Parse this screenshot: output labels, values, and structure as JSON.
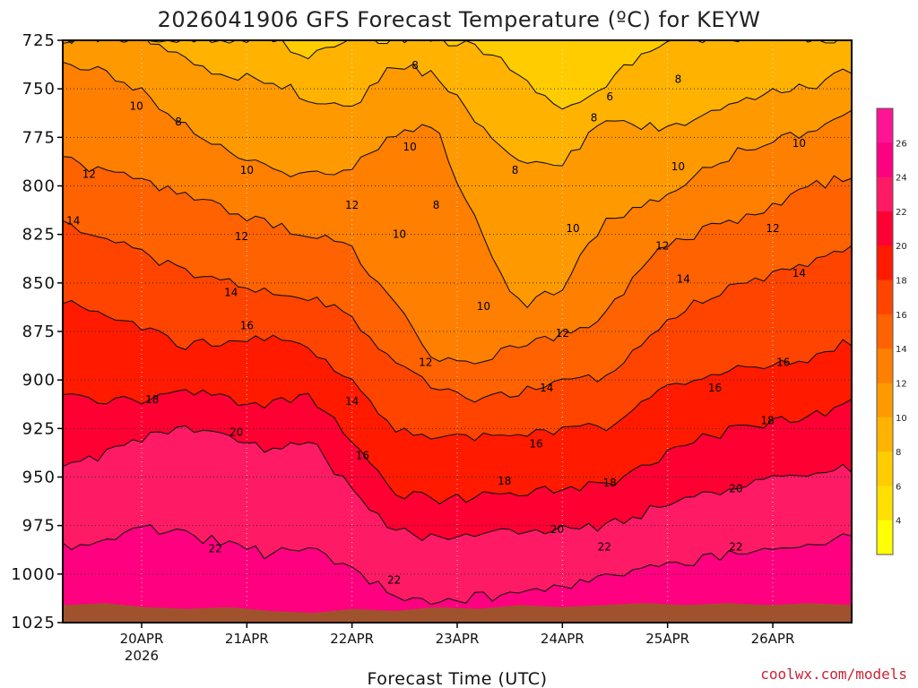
{
  "chart_data": {
    "type": "heatmap",
    "title": "2026041906 GFS Forecast Temperature (ºC) for KEYW",
    "xlabel": "Forecast Time (UTC)",
    "credit": "coolwx.com/models",
    "y_ticks": [
      "725",
      "750",
      "775",
      "800",
      "825",
      "850",
      "875",
      "900",
      "925",
      "950",
      "975",
      "1000",
      "1025"
    ],
    "ylim": [
      725,
      1025
    ],
    "x_ticks": [
      {
        "label": "20APR",
        "sub": "2026",
        "day": 1
      },
      {
        "label": "21APR",
        "sub": "",
        "day": 2
      },
      {
        "label": "22APR",
        "sub": "",
        "day": 3
      },
      {
        "label": "23APR",
        "sub": "",
        "day": 4
      },
      {
        "label": "24APR",
        "sub": "",
        "day": 5
      },
      {
        "label": "25APR",
        "sub": "",
        "day": 6
      },
      {
        "label": "26APR",
        "sub": "",
        "day": 7
      }
    ],
    "xlim": [
      0.25,
      7.75
    ],
    "colorbar_ticks": [
      4,
      6,
      8,
      10,
      12,
      14,
      16,
      18,
      20,
      22,
      24,
      26
    ],
    "colorbar_colors": [
      "#ffff00",
      "#ffe000",
      "#ffcc00",
      "#ffb300",
      "#ff9900",
      "#ff7f00",
      "#ff6200",
      "#ff4400",
      "#ff1a00",
      "#ff0033",
      "#ff1a66",
      "#ff0080",
      "#ff1493"
    ],
    "surface_color": "#a0522d",
    "contour_levels": [
      6,
      8,
      10,
      12,
      14,
      16,
      18,
      20,
      22
    ],
    "series": [
      {
        "level": 6,
        "x": [
          0.25,
          0.6,
          1.0,
          1.4,
          1.8,
          2.2,
          2.6,
          3.0,
          3.4,
          3.8,
          4.2,
          4.6,
          5.0,
          5.4,
          5.8,
          6.2,
          6.6,
          7.0,
          7.4,
          7.75
        ],
        "p": [
          724,
          724,
          724,
          724,
          724,
          724,
          733,
          724,
          724,
          724,
          728,
          742,
          762,
          748,
          730,
          724,
          724,
          724,
          724,
          724
        ]
      },
      {
        "level": 8,
        "x": [
          0.25,
          0.6,
          1.0,
          1.4,
          1.8,
          2.2,
          2.6,
          3.0,
          3.4,
          3.8,
          4.2,
          4.6,
          5.0,
          5.4,
          5.8,
          6.2,
          6.6,
          7.0,
          7.4,
          7.75
        ],
        "p": [
          724,
          724,
          724,
          735,
          742,
          745,
          755,
          760,
          738,
          742,
          768,
          786,
          790,
          764,
          770,
          768,
          760,
          752,
          748,
          740
        ]
      },
      {
        "level": 10,
        "x": [
          0.25,
          0.6,
          1.0,
          1.4,
          1.8,
          2.2,
          2.6,
          3.0,
          3.4,
          3.8,
          4.2,
          4.6,
          5.0,
          5.4,
          5.8,
          6.2,
          6.6,
          7.0,
          7.4,
          7.75
        ],
        "p": [
          735,
          740,
          752,
          768,
          782,
          790,
          795,
          790,
          772,
          770,
          822,
          862,
          852,
          818,
          810,
          796,
          784,
          778,
          770,
          762
        ]
      },
      {
        "level": 12,
        "x": [
          0.25,
          0.6,
          1.0,
          1.4,
          1.8,
          2.2,
          2.6,
          3.0,
          3.4,
          3.8,
          4.2,
          4.6,
          5.0,
          5.4,
          5.8,
          6.2,
          6.6,
          7.0,
          7.4,
          7.75
        ],
        "p": [
          785,
          792,
          798,
          805,
          812,
          820,
          825,
          832,
          860,
          890,
          890,
          882,
          876,
          868,
          836,
          826,
          818,
          810,
          800,
          795
        ]
      },
      {
        "level": 14,
        "x": [
          0.25,
          0.6,
          1.0,
          1.4,
          1.8,
          2.2,
          2.6,
          3.0,
          3.4,
          3.8,
          4.2,
          4.6,
          5.0,
          5.4,
          5.8,
          6.2,
          6.6,
          7.0,
          7.4,
          7.75
        ],
        "p": [
          818,
          826,
          834,
          845,
          850,
          855,
          858,
          868,
          890,
          906,
          910,
          906,
          902,
          898,
          880,
          862,
          852,
          846,
          838,
          830
        ]
      },
      {
        "level": 16,
        "x": [
          0.25,
          0.6,
          1.0,
          1.4,
          1.8,
          2.2,
          2.6,
          3.0,
          3.4,
          3.8,
          4.2,
          4.6,
          5.0,
          5.4,
          5.8,
          6.2,
          6.6,
          7.0,
          7.4,
          7.75
        ],
        "p": [
          858,
          866,
          872,
          882,
          880,
          878,
          884,
          900,
          926,
          930,
          930,
          928,
          926,
          924,
          910,
          900,
          894,
          892,
          888,
          880
        ]
      },
      {
        "level": 18,
        "x": [
          0.25,
          0.6,
          1.0,
          1.4,
          1.8,
          2.2,
          2.6,
          3.0,
          3.4,
          3.8,
          4.2,
          4.6,
          5.0,
          5.4,
          5.8,
          6.2,
          6.6,
          7.0,
          7.4,
          7.75
        ],
        "p": [
          906,
          912,
          910,
          905,
          910,
          912,
          908,
          930,
          958,
          962,
          960,
          958,
          956,
          954,
          945,
          932,
          926,
          922,
          918,
          912
        ]
      },
      {
        "level": 20,
        "x": [
          0.25,
          0.6,
          1.0,
          1.4,
          1.8,
          2.2,
          2.6,
          3.0,
          3.4,
          3.8,
          4.2,
          4.6,
          5.0,
          5.4,
          5.8,
          6.2,
          6.6,
          7.0,
          7.4,
          7.75
        ],
        "p": [
          946,
          940,
          930,
          925,
          930,
          935,
          930,
          958,
          978,
          982,
          980,
          978,
          976,
          975,
          968,
          960,
          956,
          952,
          948,
          945
        ]
      },
      {
        "level": 22,
        "x": [
          0.25,
          0.6,
          1.0,
          1.4,
          1.8,
          2.2,
          2.6,
          3.0,
          3.4,
          3.8,
          4.2,
          4.6,
          5.0,
          5.4,
          5.8,
          6.2,
          6.6,
          7.0,
          7.4,
          7.75
        ],
        "p": [
          985,
          986,
          976,
          980,
          984,
          990,
          985,
          998,
          1010,
          1014,
          1012,
          1010,
          1006,
          1002,
          996,
          994,
          990,
          988,
          984,
          980
        ]
      }
    ],
    "contour_labels": [
      {
        "text": "8",
        "day": 3.6,
        "p": 738
      },
      {
        "text": "6",
        "day": 5.45,
        "p": 754
      },
      {
        "text": "8",
        "day": 5.3,
        "p": 765
      },
      {
        "text": "8",
        "day": 6.1,
        "p": 745
      },
      {
        "text": "8",
        "day": 1.35,
        "p": 767
      },
      {
        "text": "10",
        "day": 0.95,
        "p": 759
      },
      {
        "text": "10",
        "day": 3.55,
        "p": 780
      },
      {
        "text": "8",
        "day": 4.55,
        "p": 792
      },
      {
        "text": "10",
        "day": 2.0,
        "p": 792
      },
      {
        "text": "10",
        "day": 6.1,
        "p": 790
      },
      {
        "text": "10",
        "day": 7.25,
        "p": 778
      },
      {
        "text": "12",
        "day": 0.5,
        "p": 794
      },
      {
        "text": "8",
        "day": 3.8,
        "p": 810
      },
      {
        "text": "12",
        "day": 3.0,
        "p": 810
      },
      {
        "text": "12",
        "day": 1.95,
        "p": 826
      },
      {
        "text": "10",
        "day": 5.1,
        "p": 822
      },
      {
        "text": "12",
        "day": 7.0,
        "p": 822
      },
      {
        "text": "14",
        "day": 0.35,
        "p": 818
      },
      {
        "text": "10",
        "day": 3.45,
        "p": 825
      },
      {
        "text": "12",
        "day": 5.95,
        "p": 831
      },
      {
        "text": "14",
        "day": 1.85,
        "p": 855
      },
      {
        "text": "14",
        "day": 6.15,
        "p": 848
      },
      {
        "text": "14",
        "day": 7.25,
        "p": 845
      },
      {
        "text": "10",
        "day": 4.25,
        "p": 862
      },
      {
        "text": "12",
        "day": 5.0,
        "p": 876
      },
      {
        "text": "16",
        "day": 2.0,
        "p": 872
      },
      {
        "text": "12",
        "day": 3.7,
        "p": 891
      },
      {
        "text": "16",
        "day": 7.1,
        "p": 891
      },
      {
        "text": "18",
        "day": 1.1,
        "p": 910
      },
      {
        "text": "14",
        "day": 3.0,
        "p": 911
      },
      {
        "text": "14",
        "day": 4.85,
        "p": 904
      },
      {
        "text": "16",
        "day": 6.45,
        "p": 904
      },
      {
        "text": "20",
        "day": 1.9,
        "p": 927
      },
      {
        "text": "16",
        "day": 3.1,
        "p": 939
      },
      {
        "text": "16",
        "day": 4.75,
        "p": 933
      },
      {
        "text": "18",
        "day": 6.95,
        "p": 921
      },
      {
        "text": "18",
        "day": 4.45,
        "p": 952
      },
      {
        "text": "18",
        "day": 5.45,
        "p": 953
      },
      {
        "text": "20",
        "day": 6.65,
        "p": 956
      },
      {
        "text": "20",
        "day": 4.95,
        "p": 977
      },
      {
        "text": "22",
        "day": 1.7,
        "p": 987
      },
      {
        "text": "22",
        "day": 5.4,
        "p": 986
      },
      {
        "text": "22",
        "day": 6.65,
        "p": 986
      },
      {
        "text": "22",
        "day": 3.4,
        "p": 1003
      }
    ],
    "surface_p": [
      1016,
      1015,
      1017,
      1018,
      1017,
      1019,
      1020,
      1018,
      1019,
      1017,
      1018,
      1016,
      1017,
      1016,
      1015,
      1016,
      1015,
      1016,
      1015,
      1016
    ]
  }
}
